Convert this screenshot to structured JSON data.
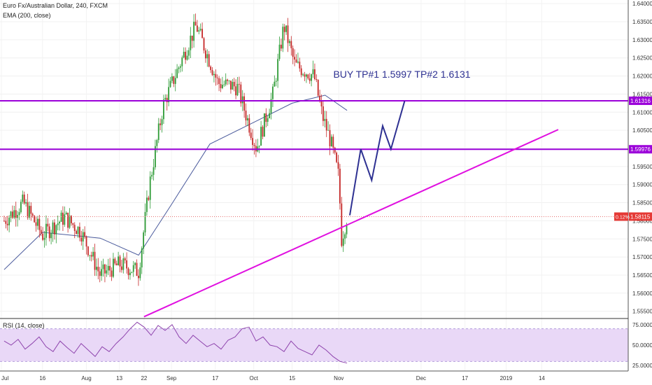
{
  "header": {
    "symbol": "Euro Fx/Australian Dollar, 240, FXCM",
    "ema": "EMA (200, close)",
    "rsi": "RSI (14, close)"
  },
  "chart_data": [
    {
      "type": "candlestick",
      "title": "Euro Fx/Australian Dollar, 240, FXCM",
      "ylim": [
        1.553,
        1.641
      ],
      "y_ticks": [
        "1.55500",
        "1.56000",
        "1.56500",
        "1.57000",
        "1.57500",
        "1.58000",
        "1.58500",
        "1.59000",
        "1.59500",
        "1.60000",
        "1.60500",
        "1.61000",
        "1.61500",
        "1.62000",
        "1.62500",
        "1.63000",
        "1.63500",
        "1.64000"
      ],
      "x_ticks": [
        "Jul",
        "16",
        "Aug",
        "13",
        "22",
        "Sep",
        "17",
        "Oct",
        "15",
        "Nov",
        "Dec",
        "17",
        "2019",
        "14"
      ],
      "price_path": [
        {
          "date": "2018-07-02",
          "price": 1.58
        },
        {
          "date": "2018-07-09",
          "price": 1.585
        },
        {
          "date": "2018-07-16",
          "price": 1.576
        },
        {
          "date": "2018-07-24",
          "price": 1.581
        },
        {
          "date": "2018-07-30",
          "price": 1.577
        },
        {
          "date": "2018-08-06",
          "price": 1.565
        },
        {
          "date": "2018-08-13",
          "price": 1.568
        },
        {
          "date": "2018-08-20",
          "price": 1.566
        },
        {
          "date": "2018-08-24",
          "price": 1.59
        },
        {
          "date": "2018-08-29",
          "price": 1.612
        },
        {
          "date": "2018-09-05",
          "price": 1.625
        },
        {
          "date": "2018-09-10",
          "price": 1.634
        },
        {
          "date": "2018-09-18",
          "price": 1.618
        },
        {
          "date": "2018-09-25",
          "price": 1.617
        },
        {
          "date": "2018-10-02",
          "price": 1.6
        },
        {
          "date": "2018-10-08",
          "price": 1.615
        },
        {
          "date": "2018-10-12",
          "price": 1.634
        },
        {
          "date": "2018-10-16",
          "price": 1.623
        },
        {
          "date": "2018-10-23",
          "price": 1.62
        },
        {
          "date": "2018-10-26",
          "price": 1.609
        },
        {
          "date": "2018-10-29",
          "price": 1.602
        },
        {
          "date": "2018-11-01",
          "price": 1.592
        },
        {
          "date": "2018-11-02",
          "price": 1.575
        },
        {
          "date": "2018-11-04",
          "price": 1.581
        }
      ],
      "ema_path": [
        {
          "date": "2018-07-02",
          "price": 1.5665
        },
        {
          "date": "2018-07-16",
          "price": 1.5768
        },
        {
          "date": "2018-08-06",
          "price": 1.5752
        },
        {
          "date": "2018-08-20",
          "price": 1.5705
        },
        {
          "date": "2018-09-01",
          "price": 1.5845
        },
        {
          "date": "2018-09-15",
          "price": 1.6012
        },
        {
          "date": "2018-10-01",
          "price": 1.6072
        },
        {
          "date": "2018-10-15",
          "price": 1.6125
        },
        {
          "date": "2018-10-27",
          "price": 1.6147
        },
        {
          "date": "2018-11-04",
          "price": 1.6105
        }
      ],
      "last_price": "1.58115",
      "last_change": "0.12%",
      "levels": [
        {
          "name": "TP2",
          "value": 1.61316,
          "label": "1.61316",
          "color": "#9b00d9"
        },
        {
          "name": "TP1",
          "value": 1.59976,
          "label": "1.59976",
          "color": "#9b00d9"
        }
      ],
      "trendline": {
        "from": {
          "date": "2018-08-22",
          "price": 1.5535
        },
        "to": {
          "date": "2019-01-20",
          "price": 1.6052
        },
        "color": "#e010e0"
      },
      "projection": [
        {
          "date": "2018-11-05",
          "price": 1.5815
        },
        {
          "date": "2018-11-09",
          "price": 1.5998
        },
        {
          "date": "2018-11-13",
          "price": 1.5912
        },
        {
          "date": "2018-11-17",
          "price": 1.6062
        },
        {
          "date": "2018-11-20",
          "price": 1.5998
        },
        {
          "date": "2018-11-25",
          "price": 1.6131
        }
      ],
      "annotation": "BUY TP#1 1.5997 TP#2 1.6131",
      "colors": {
        "up": "#2e9b36",
        "down": "#c62828",
        "ema": "#4a5a9c",
        "projection": "#2e3192"
      }
    },
    {
      "type": "line",
      "title": "RSI (14, close)",
      "ylim": [
        20,
        80
      ],
      "y_ticks": [
        "25.0000",
        "50.0000",
        "75.0000"
      ],
      "band": [
        30,
        70
      ],
      "values": [
        55,
        50,
        57,
        45,
        52,
        60,
        48,
        42,
        55,
        47,
        40,
        52,
        44,
        36,
        48,
        42,
        52,
        60,
        70,
        78,
        72,
        62,
        74,
        68,
        75,
        60,
        52,
        62,
        55,
        48,
        52,
        45,
        56,
        60,
        70,
        72,
        55,
        60,
        50,
        48,
        42,
        55,
        46,
        42,
        38,
        50,
        44,
        36,
        30,
        28
      ],
      "colors": {
        "line": "#8e44ad",
        "band": "#e9d8f7"
      }
    }
  ]
}
